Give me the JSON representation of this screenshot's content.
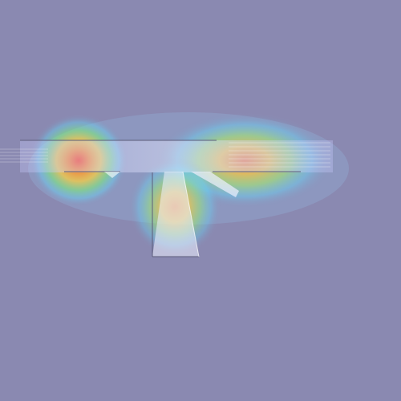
{
  "colors": {
    "background": "#8a89b1",
    "object_fill": "#eef0ff",
    "object_stroke": "#5c5c7a",
    "heat_hot": "#ff3b1f",
    "heat_warm": "#ffd23a",
    "heat_mid": "#7cf07a",
    "heat_cool": "#5fe0ff"
  },
  "overlay": {
    "type": "heatmap-overlay",
    "hotspots": [
      {
        "name": "left-hotspot",
        "intensity": 1.0
      },
      {
        "name": "right-hotspot",
        "intensity": 0.85
      },
      {
        "name": "center-hotspot",
        "intensity": 0.8
      }
    ]
  }
}
